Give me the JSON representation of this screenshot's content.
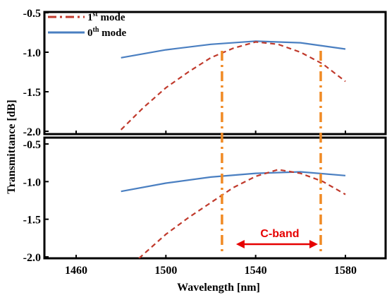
{
  "chart_data": {
    "type": "line",
    "xlabel": "Wavelength [nm]",
    "ylabel": "Transmittance [dB]",
    "xlim": [
      1460,
      1600
    ],
    "x_ticks": [
      "1460",
      "1500",
      "1540",
      "1580"
    ],
    "legend_position": "top-left",
    "legend": [
      {
        "series": "1st mode",
        "base": "1",
        "sup": "st",
        "tail": " mode",
        "color": "#c0392b",
        "style": "dash-dot"
      },
      {
        "series": "0th mode",
        "base": "0",
        "sup": "th",
        "tail": " mode",
        "color": "#4a7fc1",
        "style": "solid"
      }
    ],
    "vlines": [
      {
        "x": 1525,
        "color": "#f08a24",
        "style": "dash-dot"
      },
      {
        "x": 1569,
        "color": "#f08a24",
        "style": "dash-dot"
      }
    ],
    "annotation": {
      "text": "C-band",
      "from": 1525,
      "to": 1569,
      "color": "#e60000"
    },
    "panels": [
      {
        "id": "top",
        "ylim": [
          -2.0,
          -0.5
        ],
        "y_ticks": [
          "-0.5",
          "-1.0",
          "-1.5",
          "-2.0"
        ],
        "series": [
          {
            "name": "0th mode",
            "x": [
              1480,
              1500,
              1520,
              1540,
              1560,
              1580
            ],
            "y": [
              -1.07,
              -0.97,
              -0.9,
              -0.86,
              -0.88,
              -0.96
            ]
          },
          {
            "name": "1st mode",
            "x": [
              1480,
              1490,
              1500,
              1510,
              1520,
              1530,
              1540,
              1550,
              1560,
              1570,
              1580
            ],
            "y": [
              -1.98,
              -1.7,
              -1.45,
              -1.25,
              -1.07,
              -0.95,
              -0.87,
              -0.9,
              -1.0,
              -1.15,
              -1.37
            ]
          }
        ]
      },
      {
        "id": "bottom",
        "ylim": [
          -2.0,
          -0.5
        ],
        "y_ticks": [
          "-0.5",
          "-1.0",
          "-1.5",
          "-2.0"
        ],
        "series": [
          {
            "name": "0th mode",
            "x": [
              1480,
              1500,
              1520,
              1540,
              1560,
              1580
            ],
            "y": [
              -1.13,
              -1.02,
              -0.94,
              -0.89,
              -0.87,
              -0.92
            ]
          },
          {
            "name": "1st mode",
            "x": [
              1488,
              1500,
              1510,
              1520,
              1530,
              1540,
              1550,
              1560,
              1570,
              1580
            ],
            "y": [
              -2.02,
              -1.7,
              -1.48,
              -1.28,
              -1.08,
              -0.93,
              -0.84,
              -0.89,
              -1.0,
              -1.17
            ]
          }
        ]
      }
    ]
  }
}
